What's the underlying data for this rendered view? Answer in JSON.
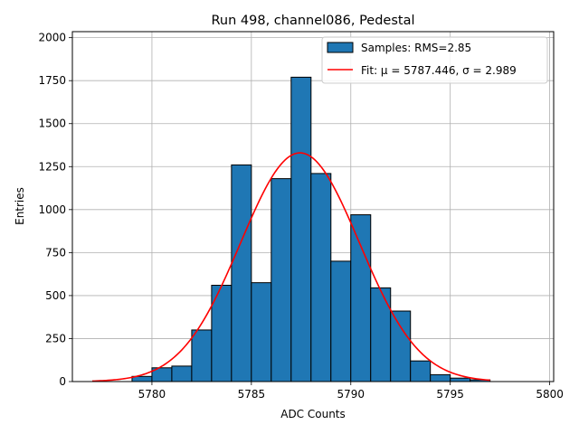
{
  "chart_data": {
    "type": "bar",
    "title": "Run 498, channel086, Pedestal",
    "xlabel": "ADC Counts",
    "ylabel": "Entries",
    "xlim": [
      5776.0,
      5800.2
    ],
    "ylim": [
      0,
      2035
    ],
    "xticks": [
      5780,
      5785,
      5790,
      5795,
      5800
    ],
    "yticks": [
      0,
      250,
      500,
      750,
      1000,
      1250,
      1500,
      1750,
      2000
    ],
    "grid": true,
    "legend_position": "top-right",
    "histogram": {
      "name": "Samples: RMS=2.85",
      "color": "#1f77b4",
      "edge_color": "#000000",
      "bin_edges": [
        5779.0,
        5780.0,
        5781.0,
        5782.0,
        5783.0,
        5784.0,
        5785.0,
        5786.0,
        5787.0,
        5788.0,
        5789.0,
        5790.0,
        5791.0,
        5792.0,
        5793.0,
        5794.0,
        5795.0,
        5796.0,
        5797.0
      ],
      "counts": [
        30,
        80,
        90,
        300,
        560,
        1260,
        575,
        1180,
        1770,
        1210,
        700,
        970,
        545,
        410,
        120,
        40,
        20,
        10
      ]
    },
    "fit": {
      "name": "Fit: μ = 5787.446, σ = 2.989",
      "color": "#ff0000",
      "mu": 5787.446,
      "sigma": 2.989,
      "amplitude": 1330,
      "x_range": [
        5777.0,
        5797.0
      ]
    }
  }
}
